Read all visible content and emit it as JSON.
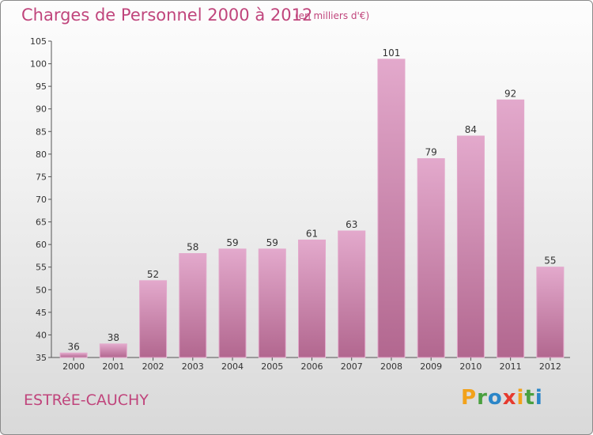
{
  "title": "Charges de Personnel 2000 à 2012",
  "subtitle": "(en milliers d'€)",
  "location": "ESTRéE-CAUCHY",
  "logo": {
    "letters": [
      "P",
      "r",
      "o",
      "x",
      "i",
      "t",
      "i"
    ],
    "colors": [
      "#f2a21b",
      "#4aa03f",
      "#2b86c8",
      "#e63a2e",
      "#f2a21b",
      "#4aa03f",
      "#2b86c8"
    ]
  },
  "colors": {
    "bar": "#d58fba",
    "bar_light": "#e3a9cc",
    "bar_dark": "#b2678f",
    "title": "#c0457c"
  },
  "chart_data": {
    "type": "bar",
    "categories": [
      "2000",
      "2001",
      "2002",
      "2003",
      "2004",
      "2005",
      "2006",
      "2007",
      "2008",
      "2009",
      "2010",
      "2011",
      "2012"
    ],
    "values": [
      36,
      38,
      52,
      58,
      59,
      59,
      61,
      63,
      101,
      79,
      84,
      92,
      55
    ],
    "title": "Charges de Personnel 2000 à 2012",
    "ylim": [
      35,
      105
    ],
    "yticks": [
      35,
      40,
      45,
      50,
      55,
      60,
      65,
      70,
      75,
      80,
      85,
      90,
      95,
      100,
      105
    ],
    "grid": false
  }
}
